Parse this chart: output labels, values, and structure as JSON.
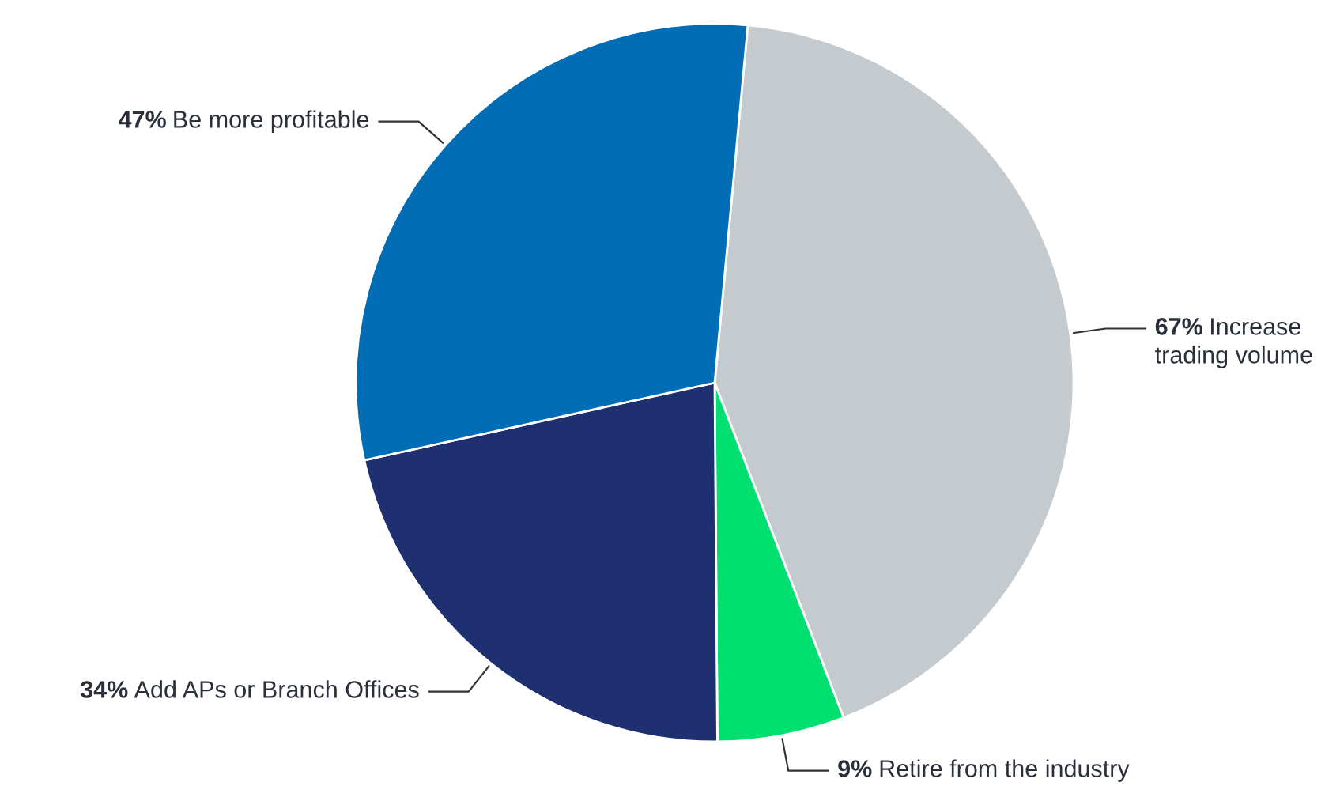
{
  "chart_data": {
    "type": "pie",
    "categories": [
      "Increase\ntrading volume",
      "Retire from the industry",
      "Add APs or Branch Offices",
      "Be more profitable"
    ],
    "values": [
      67,
      9,
      34,
      47
    ],
    "value_labels": [
      "67%",
      "9%",
      "34%",
      "47%"
    ],
    "colors": [
      "#c4cacd",
      "#00e070",
      "#1f3070",
      "#006db6"
    ]
  }
}
